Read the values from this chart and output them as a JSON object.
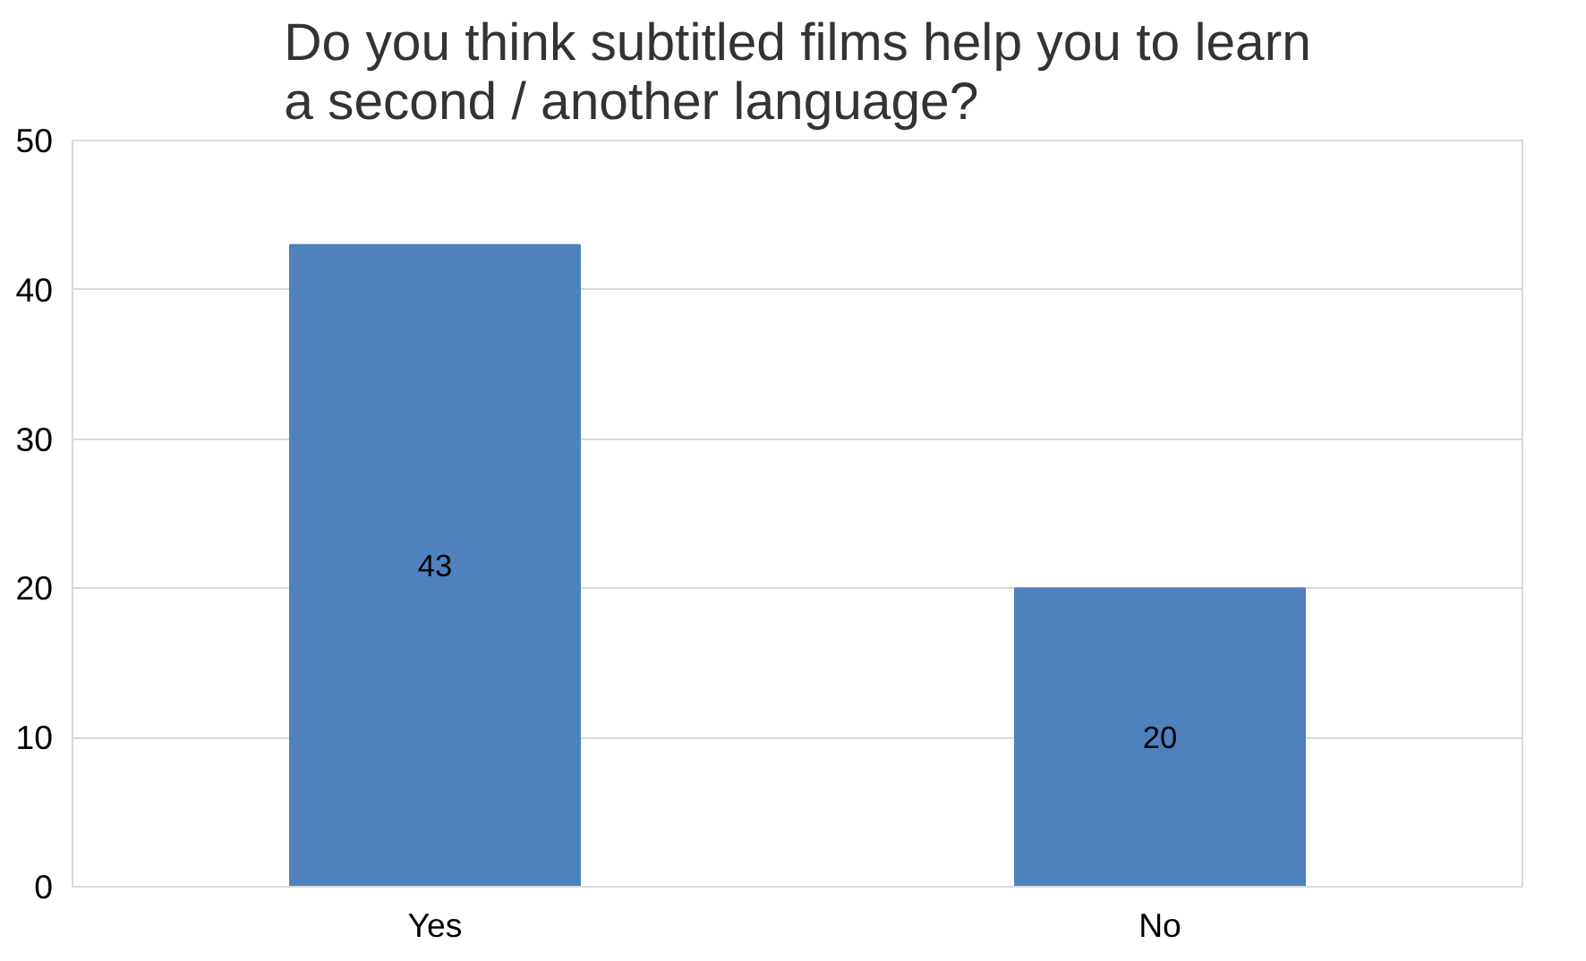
{
  "chart_data": {
    "type": "bar",
    "title": "Do you think subtitled films help you to learn\na second / another language?",
    "categories": [
      "Yes",
      "No"
    ],
    "values": [
      43,
      20
    ],
    "color": "#4f81bd",
    "ylim": [
      0,
      50
    ],
    "yticks": [
      0,
      10,
      20,
      30,
      40,
      50
    ],
    "grid": "y",
    "data_labels": true
  }
}
